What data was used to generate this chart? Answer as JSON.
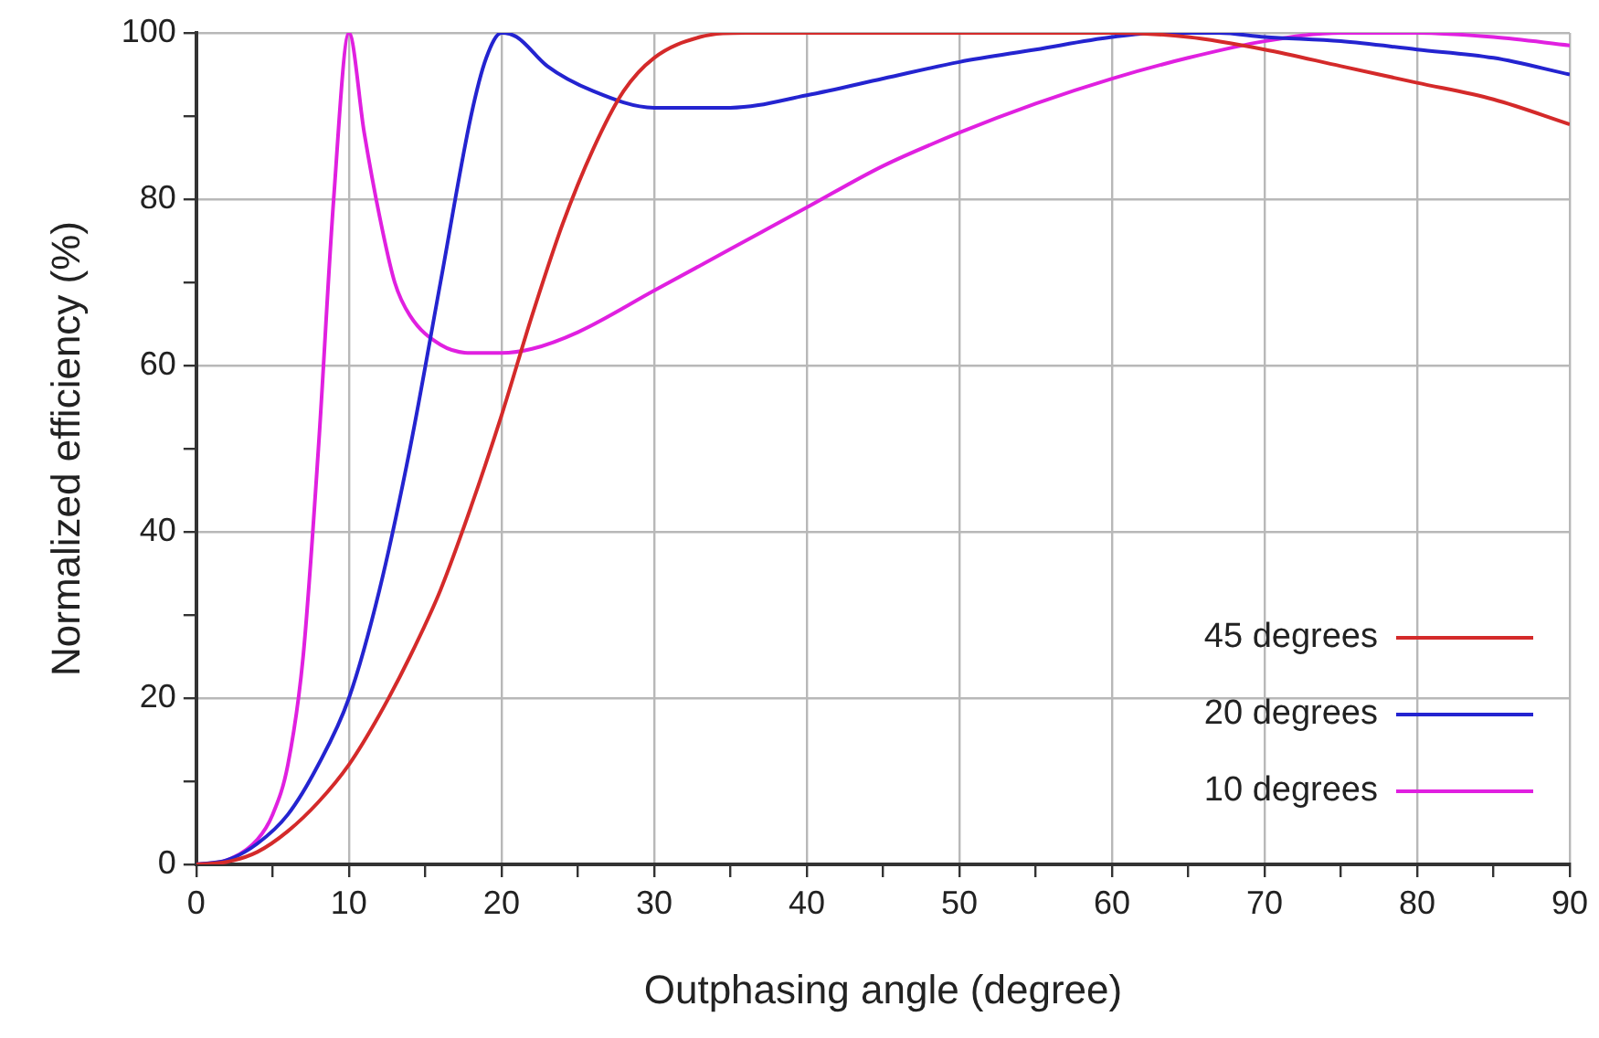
{
  "chart_data": {
    "type": "line",
    "xlabel": "Outphasing angle (degree)",
    "ylabel": "Normalized efficiency (%)",
    "xlim": [
      0,
      90
    ],
    "ylim": [
      0,
      100
    ],
    "xticks": [
      0,
      {
        "value": 5,
        "label": null
      },
      10,
      {
        "value": 15,
        "label": null
      },
      20,
      {
        "value": 25,
        "label": null
      },
      30,
      {
        "value": 35,
        "label": null
      },
      40,
      {
        "value": 45,
        "label": null
      },
      50,
      {
        "value": 55,
        "label": null
      },
      60,
      {
        "value": 65,
        "label": null
      },
      70,
      {
        "value": 75,
        "label": null
      },
      80,
      {
        "value": 85,
        "label": null
      },
      90
    ],
    "yticks": [
      0,
      {
        "value": 10,
        "label": null
      },
      20,
      {
        "value": 30,
        "label": null
      },
      40,
      {
        "value": 50,
        "label": null
      },
      60,
      {
        "value": 70,
        "label": null
      },
      80,
      {
        "value": 90,
        "label": null
      },
      100
    ],
    "grid": true,
    "legend": "bottom right",
    "marker": "none",
    "line_style": "solid",
    "series": [
      {
        "name": "45 degrees",
        "color": "#d42a2a",
        "x": [
          0,
          2,
          4,
          6,
          8,
          10,
          12,
          14,
          16,
          18,
          20,
          22,
          24,
          26,
          28,
          30,
          33,
          36,
          60,
          65,
          70,
          75,
          80,
          85,
          90
        ],
        "values": [
          0,
          0.3,
          1.5,
          4,
          7.5,
          12,
          18,
          25,
          33,
          43,
          54,
          66,
          77,
          86,
          93,
          97,
          99.5,
          100,
          100,
          99.5,
          98,
          96,
          94,
          92,
          89
        ]
      },
      {
        "name": "20 degrees",
        "color": "#2424d0",
        "x": [
          0,
          2,
          4,
          6,
          8,
          10,
          12,
          14,
          16,
          18,
          19,
          20,
          21,
          23,
          26,
          30,
          35,
          40,
          45,
          50,
          55,
          60,
          63,
          67,
          70,
          75,
          80,
          85,
          90
        ],
        "values": [
          0,
          0.5,
          2.5,
          6,
          12,
          20,
          33,
          50,
          70,
          90,
          97,
          100,
          99.5,
          96,
          93,
          91,
          91,
          92.5,
          94.5,
          96.5,
          98,
          99.5,
          100,
          100,
          99.5,
          99,
          98,
          97,
          95
        ]
      },
      {
        "name": "10 degrees",
        "color": "#e020e0",
        "x": [
          0,
          2,
          4,
          5,
          6,
          7,
          8,
          9,
          10,
          11,
          12,
          13,
          14,
          16,
          18,
          20,
          22,
          25,
          30,
          35,
          40,
          45,
          50,
          55,
          60,
          65,
          70,
          75,
          80,
          85,
          90
        ],
        "values": [
          0,
          0.5,
          3,
          6,
          12,
          25,
          50,
          80,
          100,
          88,
          78,
          70,
          66,
          62.5,
          61.5,
          61.5,
          62,
          64,
          69,
          74,
          79,
          84,
          88,
          91.5,
          94.5,
          97,
          99,
          100,
          100,
          99.5,
          98.5
        ]
      }
    ]
  }
}
